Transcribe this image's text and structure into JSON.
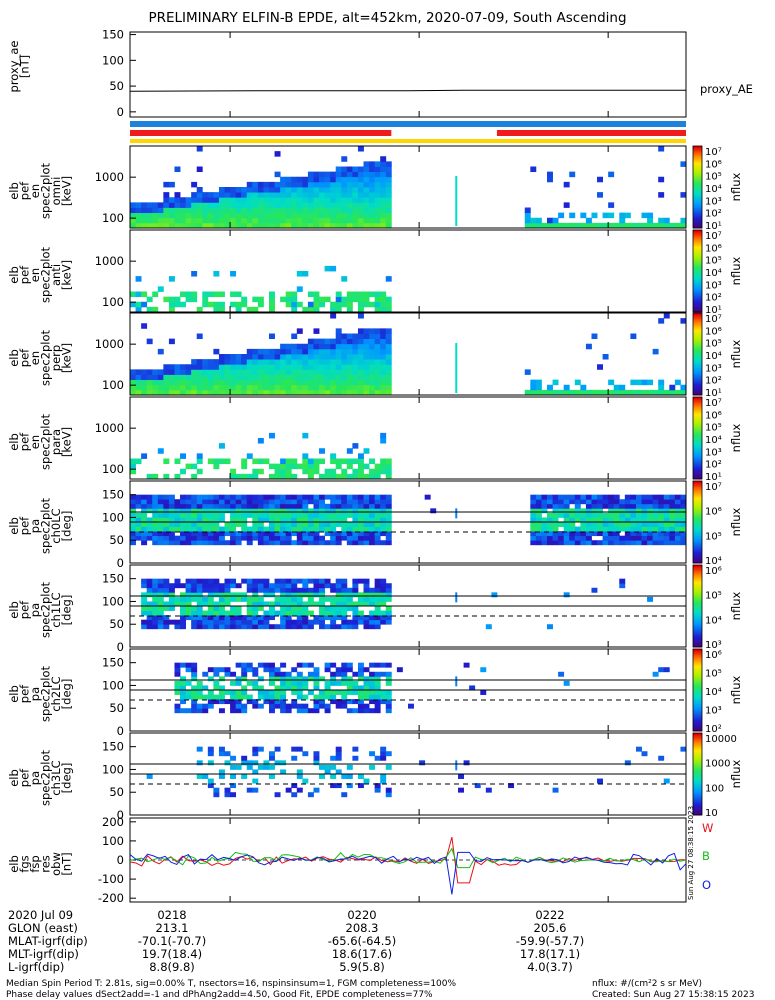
{
  "title": "PRELIMINARY ELFIN-B EPDE, alt=452km, 2020-07-09, South Ascending",
  "xticks": [
    "0218",
    "0220",
    "0222"
  ],
  "ae": {
    "ylabel": [
      "proxy_ae",
      "[nT]"
    ],
    "yticks": [
      "150",
      "100",
      "50",
      "0"
    ],
    "right_label": "proxy_AE",
    "chart_data": {
      "type": "line",
      "title": "",
      "xlabel": "",
      "ylabel": "proxy_ae [nT]",
      "ylim": [
        -10,
        155
      ],
      "x": [
        0,
        0.25,
        0.5,
        0.6,
        0.75,
        1
      ],
      "y": [
        40,
        41,
        41,
        42,
        42,
        42
      ]
    }
  },
  "bars": {
    "blue": "#1e82dc",
    "red": "#ee1c1c",
    "yellow": "#ffd700",
    "red_segments": [
      [
        0,
        0.47
      ],
      [
        0.66,
        1
      ]
    ],
    "yellow_segments": [
      [
        0,
        1
      ]
    ]
  },
  "spec_panels": [
    {
      "ylabel": [
        "elb",
        "pef",
        "en",
        "spec2plot",
        "omni",
        "[keV]"
      ],
      "yticks": [
        "1000",
        "100"
      ],
      "cticks": [
        "10⁷",
        "10⁶",
        "10⁵",
        "10⁴",
        "10³",
        "10²",
        "10¹"
      ],
      "cunit": "nflux"
    },
    {
      "ylabel": [
        "elb",
        "pef",
        "en",
        "spec2plot",
        "anti",
        "[keV]"
      ],
      "yticks": [
        "1000",
        "100"
      ],
      "cticks": [
        "10⁷",
        "10⁶",
        "10⁵",
        "10⁴",
        "10³",
        "10²",
        "10¹"
      ],
      "cunit": "nflux"
    },
    {
      "ylabel": [
        "elb",
        "pef",
        "en",
        "spec2plot",
        "perp",
        "[keV]"
      ],
      "yticks": [
        "1000",
        "100"
      ],
      "cticks": [
        "10⁷",
        "10⁶",
        "10⁵",
        "10⁴",
        "10³",
        "10²",
        "10¹"
      ],
      "cunit": "nflux"
    },
    {
      "ylabel": [
        "elb",
        "pef",
        "en",
        "spec2plot",
        "para",
        "[keV]"
      ],
      "yticks": [
        "1000",
        "100"
      ],
      "cticks": [
        "10⁷",
        "10⁶",
        "10⁵",
        "10⁴",
        "10³",
        "10²",
        "10¹"
      ],
      "cunit": "nflux"
    }
  ],
  "pa_panels": [
    {
      "ylabel": [
        "elb",
        "pef",
        "pa",
        "spec2plot",
        "ch0LC",
        "[deg]"
      ],
      "yticks": [
        "150",
        "100",
        "50",
        "0"
      ],
      "cticks": [
        "10⁷",
        "10⁶",
        "10⁵",
        "10⁴"
      ],
      "cunit": "nflux"
    },
    {
      "ylabel": [
        "elb",
        "pef",
        "pa",
        "spec2plot",
        "ch1LC",
        "[deg]"
      ],
      "yticks": [
        "150",
        "100",
        "50",
        "0"
      ],
      "cticks": [
        "10⁶",
        "10⁵",
        "10⁴",
        "10³"
      ],
      "cunit": "nflux"
    },
    {
      "ylabel": [
        "elb",
        "pef",
        "pa",
        "spec2plot",
        "ch2LC",
        "[deg]"
      ],
      "yticks": [
        "150",
        "100",
        "50",
        "0"
      ],
      "cticks": [
        "10⁶",
        "10⁵",
        "10⁴",
        "10³",
        "10²"
      ],
      "cunit": "nflux"
    },
    {
      "ylabel": [
        "elb",
        "pef",
        "pa",
        "spec2plot",
        "ch3LC",
        "[deg]"
      ],
      "yticks": [
        "150",
        "100",
        "50",
        "0"
      ],
      "cticks": [
        "10000",
        "1000",
        "100",
        "10"
      ],
      "cunit": "nflux"
    }
  ],
  "fgs": {
    "ylabel": [
      "elb",
      "fgs",
      "fsp",
      "res",
      "obw",
      "[nT]"
    ],
    "yticks": [
      "200",
      "100",
      "0",
      "-100",
      "-200"
    ],
    "legend": [
      {
        "name": "W",
        "color": "#e8101a"
      },
      {
        "name": "B",
        "color": "#10c010"
      },
      {
        "name": "O",
        "color": "#1020e0"
      }
    ],
    "side_text": "Sun Aug 27 08:38:15 2023",
    "chart_data": {
      "type": "line",
      "title": "",
      "xlabel": "",
      "ylabel": "elb fgs fsp res obw [nT]",
      "ylim": [
        -220,
        220
      ],
      "n": 96,
      "series": [
        {
          "name": "W"
        },
        {
          "name": "B"
        },
        {
          "name": "O"
        }
      ]
    }
  },
  "bottom_rows": [
    [
      "2020 Jul 09",
      "0218",
      "0220",
      "0222"
    ],
    [
      "GLON (east)",
      "213.1",
      "208.3",
      "205.6"
    ],
    [
      "MLAT-igrf(dip)",
      "-70.1(-70.7)",
      "-65.6(-64.5)",
      "-59.9(-57.7)"
    ],
    [
      "MLT-igrf(dip)",
      "19.7(18.4)",
      "18.6(17.6)",
      "17.8(17.1)"
    ],
    [
      "L-igrf(dip)",
      "8.8(9.8)",
      "5.9(5.8)",
      "4.0(3.7)"
    ]
  ],
  "footer": {
    "l1": "Median Spin Period T: 2.81s, sig=0.00% T, nsectors=16, nspinsinsum=1, FGM completeness=100%",
    "l2": "Phase delay values dSect2add=-1 and dPhAng2add=4.50, Good Fit, EPDE completeness=77%",
    "r1": "nflux: #/(cm²2 s sr MeV)",
    "r2": "Created: Sun Aug 27 15:38:15 2023"
  }
}
